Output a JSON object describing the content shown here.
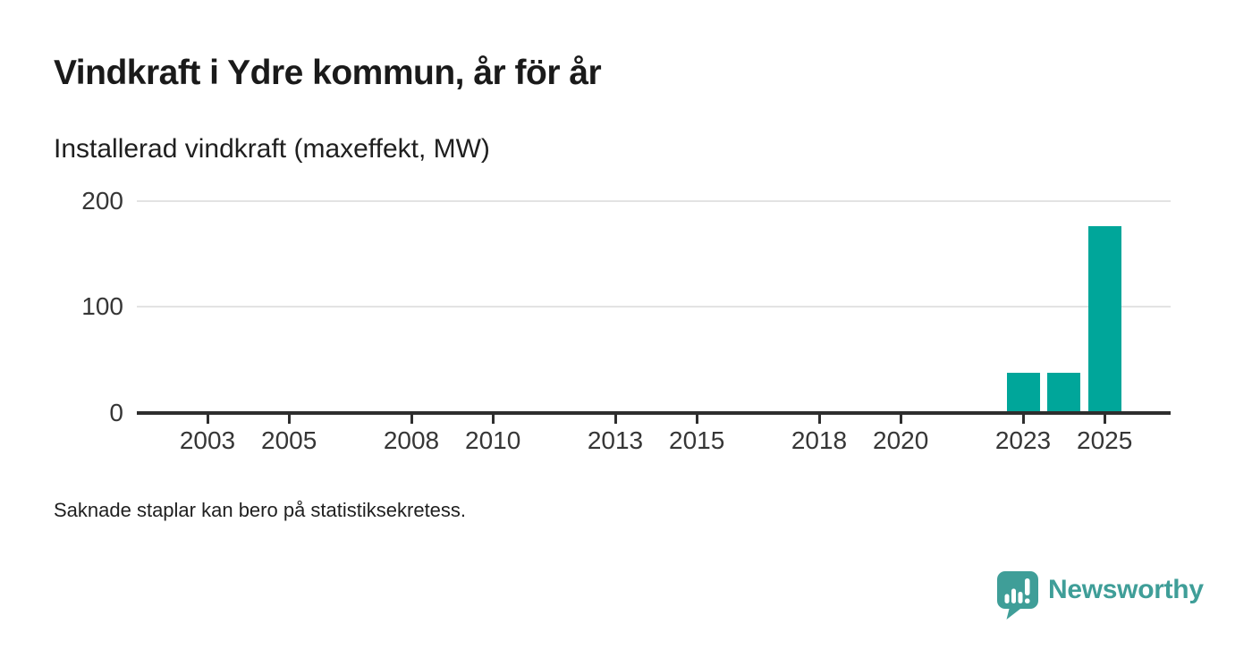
{
  "chart_data": {
    "type": "bar",
    "title": "Vindkraft i Ydre kommun, år för år",
    "subtitle": "Installerad vindkraft (maxeffekt, MW)",
    "note": "Saknade staplar kan bero på statistiksekretess.",
    "unit": "MW",
    "categories": [
      2023,
      2024,
      2025
    ],
    "values": [
      36,
      36,
      175
    ],
    "bars": [
      {
        "year": 2023,
        "value": 36
      },
      {
        "year": 2024,
        "value": 36
      },
      {
        "year": 2025,
        "value": 175
      }
    ],
    "x_ticks": [
      2003,
      2005,
      2008,
      2010,
      2013,
      2015,
      2018,
      2020,
      2023,
      2025
    ],
    "y_ticks": [
      0,
      100,
      200
    ],
    "ylim": [
      0,
      200
    ],
    "xlim": [
      2002,
      2026
    ],
    "grid": "horizontal",
    "legend": "none",
    "xlabel": "",
    "ylabel": "Installerad vindkraft (maxeffekt, MW)",
    "bar_color": "#00a69a",
    "axis_color": "#2e2e2e",
    "grid_color": "#e3e3e3",
    "tick_label_color": "#363636"
  },
  "branding": {
    "name": "Newsworthy",
    "color": "#3f9e98",
    "logo_icon": "speech-bubble-with-bar-chart-and-exclamation"
  }
}
